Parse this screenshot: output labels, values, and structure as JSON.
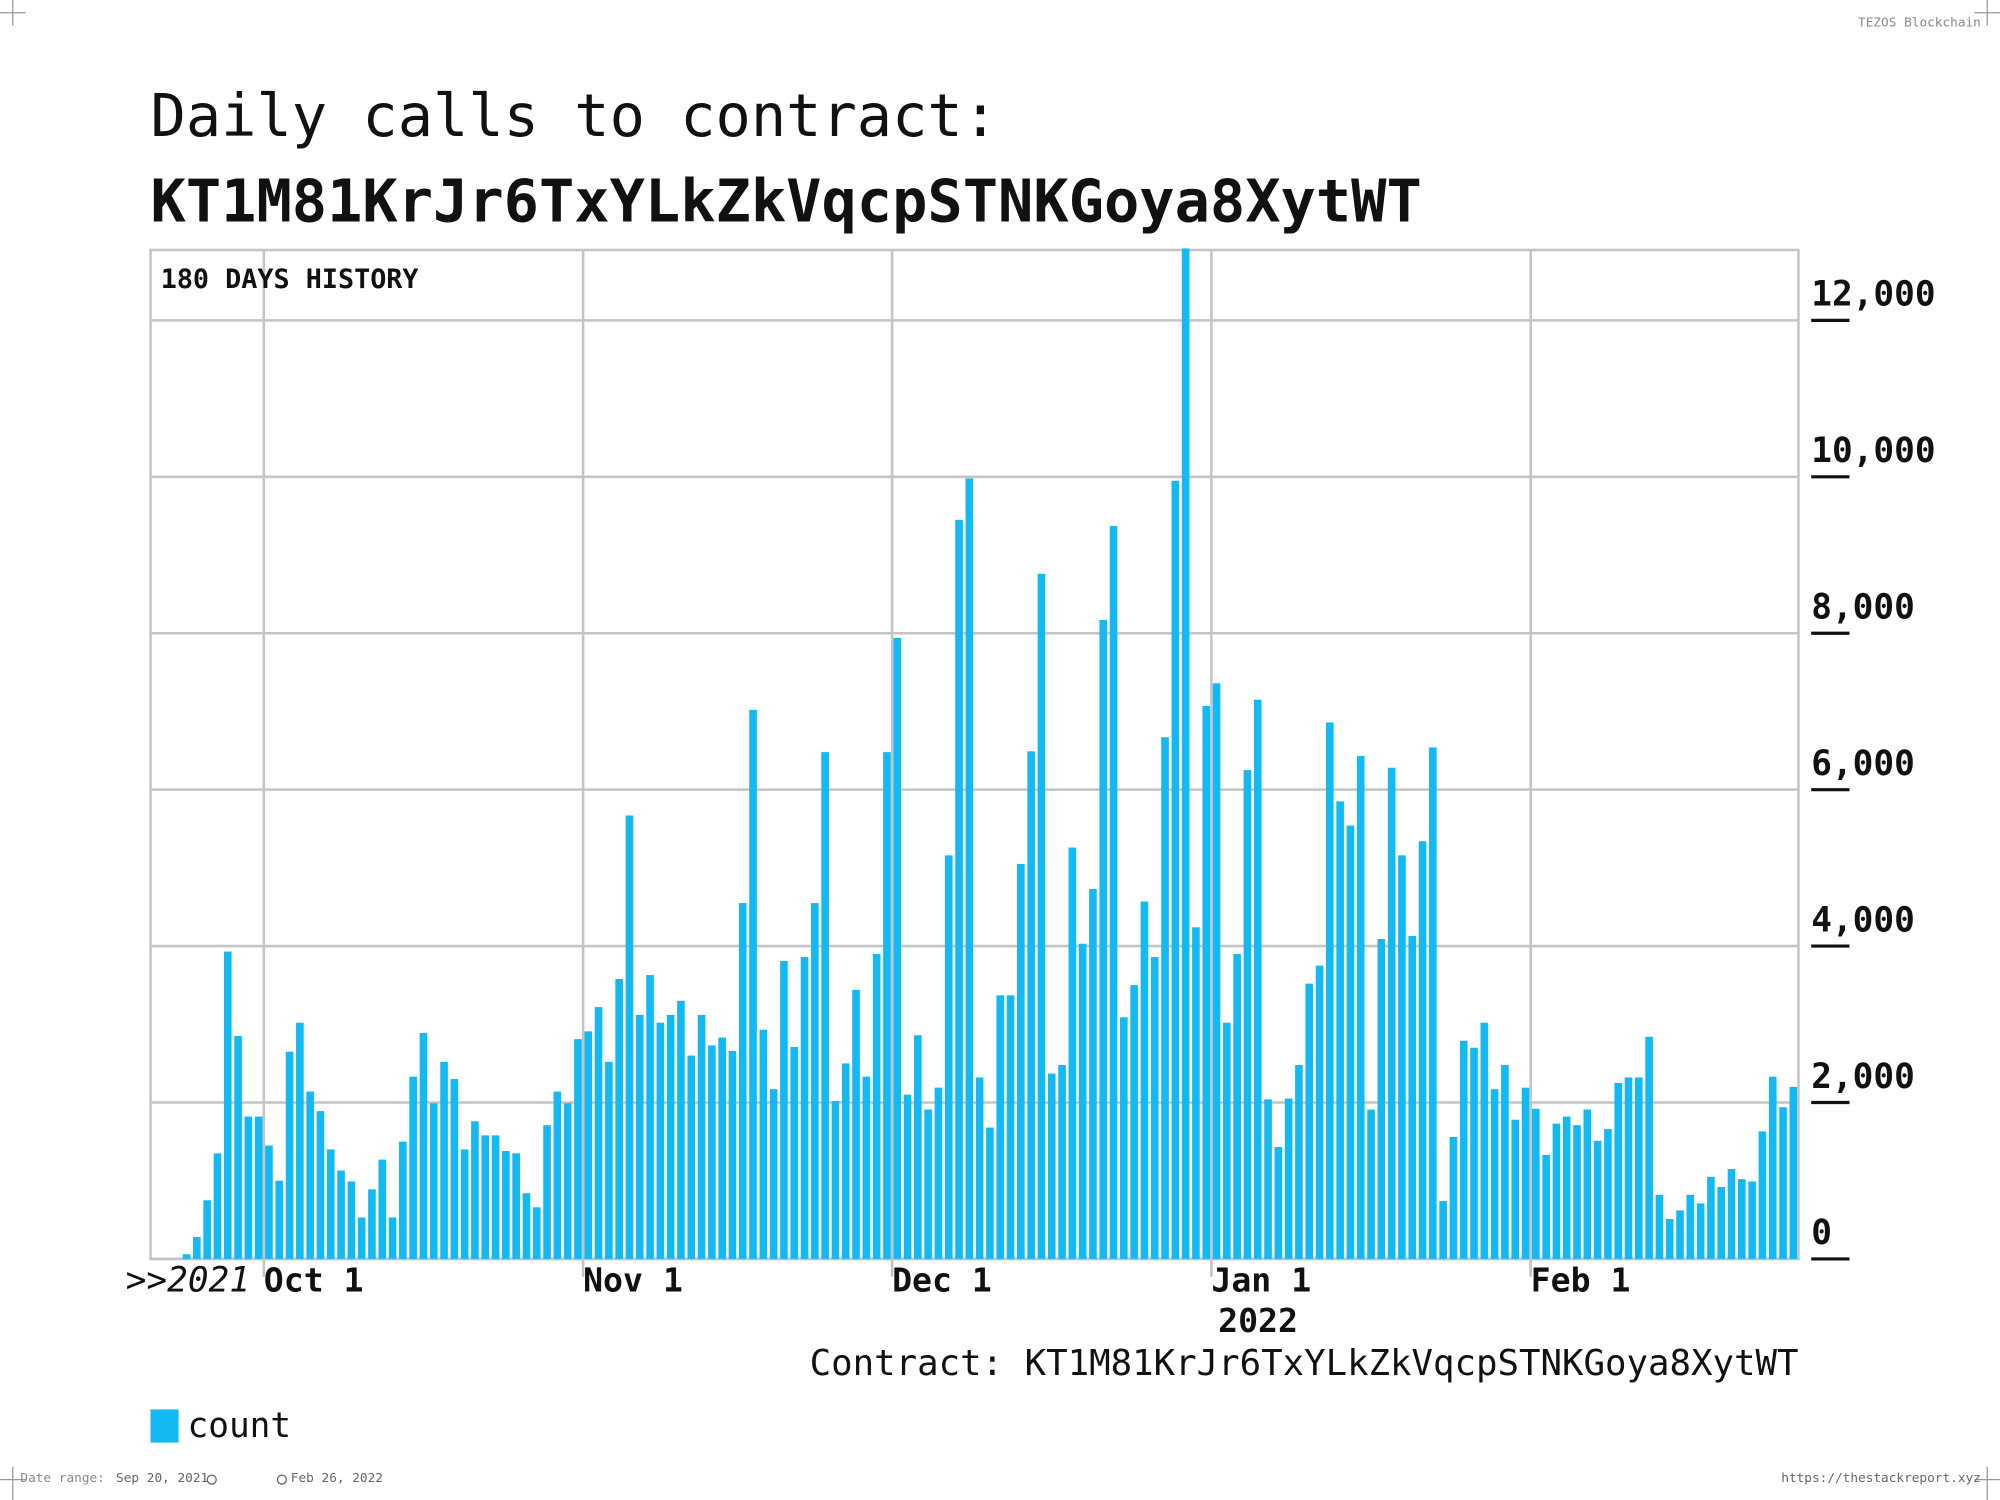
{
  "header_tag": "TEZOS Blockchain",
  "footer": {
    "date_range_label": "Date range:",
    "start": "Sep 20, 2021",
    "end": "Feb 26, 2022",
    "url": "https://thestackreport.xyz"
  },
  "chart_data": {
    "type": "bar",
    "title": "Daily calls to contract:",
    "subtitle": "KT1M81KrJr6TxYLkZkVqcpSTNKGoya8XytWT",
    "annotation": "180 DAYS HISTORY",
    "caption": "Contract: KT1M81KrJr6TxYLkZkVqcpSTNKGoya8XytWT",
    "x_year_labels": [
      ">>2021",
      "2022"
    ],
    "xlim": [
      "2021-09-20",
      "2022-02-27"
    ],
    "xticks": [
      {
        "value": "2021-10-01",
        "label": "Oct 1"
      },
      {
        "value": "2021-11-01",
        "label": "Nov 1"
      },
      {
        "value": "2021-12-01",
        "label": "Dec 1"
      },
      {
        "value": "2022-01-01",
        "label": "Jan 1"
      },
      {
        "value": "2022-02-01",
        "label": "Feb 1"
      }
    ],
    "ylim": [
      0,
      12900
    ],
    "yticks": [
      0,
      {
        "value": 2000,
        "label": "2,000"
      },
      {
        "value": 4000,
        "label": "4,000"
      },
      {
        "value": 6000,
        "label": "6,000"
      },
      {
        "value": 8000,
        "label": "8,000"
      },
      {
        "value": 10000,
        "label": "10,000"
      },
      {
        "value": 12000,
        "label": "12,000"
      }
    ],
    "grid": true,
    "x": [
      "2021-09-20",
      "2021-09-21",
      "2021-09-22",
      "2021-09-23",
      "2021-09-24",
      "2021-09-25",
      "2021-09-26",
      "2021-09-27",
      "2021-09-28",
      "2021-09-29",
      "2021-09-30",
      "2021-10-01",
      "2021-10-02",
      "2021-10-03",
      "2021-10-04",
      "2021-10-05",
      "2021-10-06",
      "2021-10-07",
      "2021-10-08",
      "2021-10-09",
      "2021-10-10",
      "2021-10-11",
      "2021-10-12",
      "2021-10-13",
      "2021-10-14",
      "2021-10-15",
      "2021-10-16",
      "2021-10-17",
      "2021-10-18",
      "2021-10-19",
      "2021-10-20",
      "2021-10-21",
      "2021-10-22",
      "2021-10-23",
      "2021-10-24",
      "2021-10-25",
      "2021-10-26",
      "2021-10-27",
      "2021-10-28",
      "2021-10-29",
      "2021-10-30",
      "2021-10-31",
      "2021-11-01",
      "2021-11-02",
      "2021-11-03",
      "2021-11-04",
      "2021-11-05",
      "2021-11-06",
      "2021-11-07",
      "2021-11-08",
      "2021-11-09",
      "2021-11-10",
      "2021-11-11",
      "2021-11-12",
      "2021-11-13",
      "2021-11-14",
      "2021-11-15",
      "2021-11-16",
      "2021-11-17",
      "2021-11-18",
      "2021-11-19",
      "2021-11-20",
      "2021-11-21",
      "2021-11-22",
      "2021-11-23",
      "2021-11-24",
      "2021-11-25",
      "2021-11-26",
      "2021-11-27",
      "2021-11-28",
      "2021-11-29",
      "2021-11-30",
      "2021-12-01",
      "2021-12-02",
      "2021-12-03",
      "2021-12-04",
      "2021-12-05",
      "2021-12-06",
      "2021-12-07",
      "2021-12-08",
      "2021-12-09",
      "2021-12-10",
      "2021-12-11",
      "2021-12-12",
      "2021-12-13",
      "2021-12-14",
      "2021-12-15",
      "2021-12-16",
      "2021-12-17",
      "2021-12-18",
      "2021-12-19",
      "2021-12-20",
      "2021-12-21",
      "2021-12-22",
      "2021-12-23",
      "2021-12-24",
      "2021-12-25",
      "2021-12-26",
      "2021-12-27",
      "2021-12-28",
      "2021-12-29",
      "2021-12-30",
      "2021-12-31",
      "2022-01-01",
      "2022-01-02",
      "2022-01-03",
      "2022-01-04",
      "2022-01-05",
      "2022-01-06",
      "2022-01-07",
      "2022-01-08",
      "2022-01-09",
      "2022-01-10",
      "2022-01-11",
      "2022-01-12",
      "2022-01-13",
      "2022-01-14",
      "2022-01-15",
      "2022-01-16",
      "2022-01-17",
      "2022-01-18",
      "2022-01-19",
      "2022-01-20",
      "2022-01-21",
      "2022-01-22",
      "2022-01-23",
      "2022-01-24",
      "2022-01-25",
      "2022-01-26",
      "2022-01-27",
      "2022-01-28",
      "2022-01-29",
      "2022-01-30",
      "2022-01-31",
      "2022-02-01",
      "2022-02-02",
      "2022-02-03",
      "2022-02-04",
      "2022-02-05",
      "2022-02-06",
      "2022-02-07",
      "2022-02-08",
      "2022-02-09",
      "2022-02-10",
      "2022-02-11",
      "2022-02-12",
      "2022-02-13",
      "2022-02-14",
      "2022-02-15",
      "2022-02-16",
      "2022-02-17",
      "2022-02-18",
      "2022-02-19",
      "2022-02-20",
      "2022-02-21",
      "2022-02-22",
      "2022-02-23",
      "2022-02-24",
      "2022-02-25",
      "2022-02-26"
    ],
    "series": [
      {
        "name": "count",
        "color": "#12b9f2",
        "values": [
          0,
          0,
          0,
          60,
          280,
          750,
          1350,
          3930,
          2850,
          1820,
          1820,
          1450,
          1000,
          2650,
          3020,
          2140,
          1890,
          1400,
          1130,
          990,
          530,
          890,
          1270,
          530,
          1500,
          2330,
          2890,
          1990,
          2520,
          2300,
          1400,
          1760,
          1580,
          1580,
          1380,
          1350,
          840,
          660,
          1710,
          2140,
          1990,
          2810,
          2910,
          3220,
          2520,
          3580,
          5670,
          3120,
          3630,
          3020,
          3120,
          3300,
          2600,
          3120,
          2730,
          2830,
          2660,
          4550,
          7020,
          2930,
          2170,
          3810,
          2710,
          3860,
          4550,
          6480,
          2020,
          2500,
          3440,
          2330,
          3900,
          6480,
          7940,
          2100,
          2860,
          1910,
          2190,
          5160,
          9450,
          9980,
          2320,
          1680,
          3370,
          3370,
          5050,
          6490,
          8760,
          2370,
          2480,
          5260,
          4030,
          4730,
          8170,
          9370,
          3090,
          3500,
          4570,
          3860,
          6670,
          9950,
          12920,
          4240,
          7070,
          7360,
          3020,
          3900,
          6250,
          7150,
          2040,
          1430,
          2050,
          2480,
          3520,
          3750,
          6860,
          5850,
          5540,
          6430,
          1910,
          4090,
          6280,
          5160,
          4130,
          5340,
          6540,
          740,
          1560,
          2790,
          2700,
          3020,
          2170,
          2480,
          1780,
          2190,
          1920,
          1330,
          1730,
          1820,
          1710,
          1910,
          1510,
          1660,
          2250,
          2320,
          2320,
          2840,
          820,
          510,
          620,
          820,
          710,
          1050,
          920,
          1150,
          1020,
          990,
          1630,
          2330,
          1940,
          2200
        ]
      }
    ]
  }
}
